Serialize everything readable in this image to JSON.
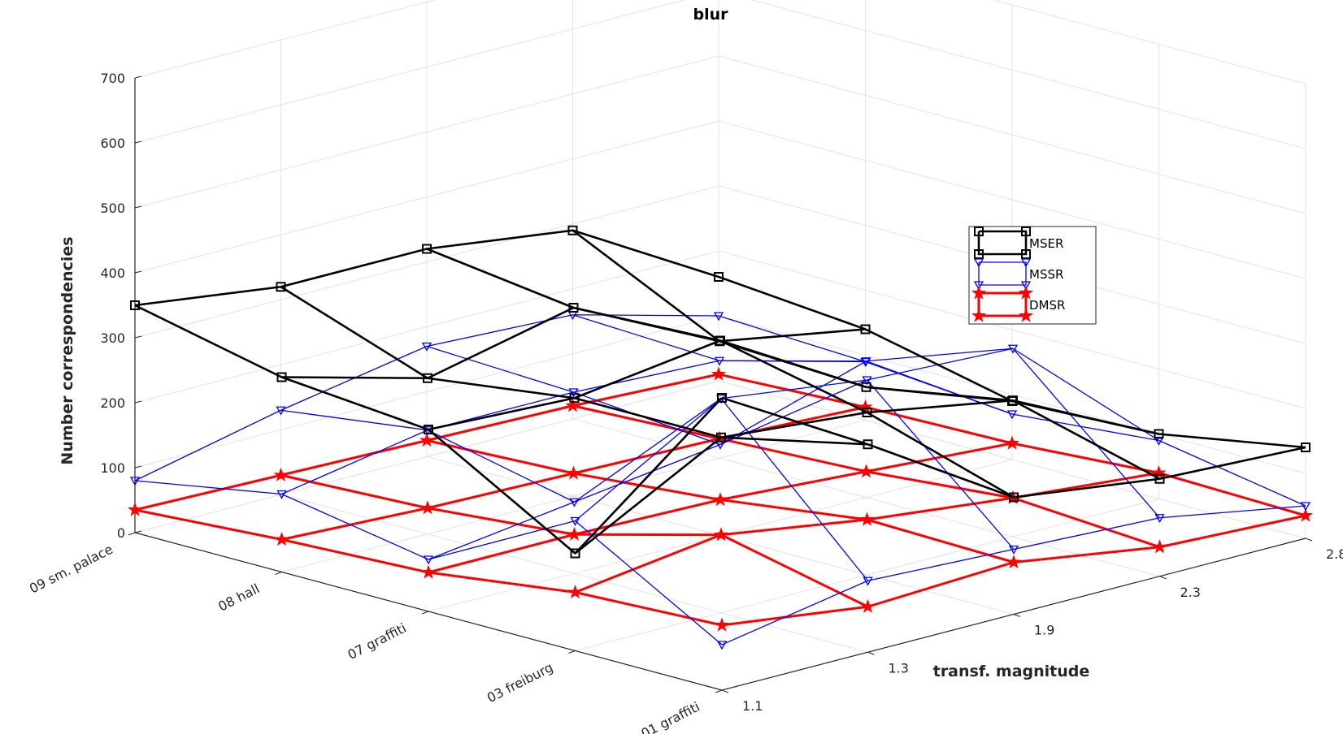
{
  "chart_data": {
    "type": "3d-line",
    "title": "blur",
    "xlabel": "",
    "ylabel": "transf. magnitude",
    "zlabel": "Number correspondencies",
    "x_categories": [
      "09 sm. palace",
      "08 hall",
      "07 graffiti",
      "03 freiburg",
      "01 graffiti"
    ],
    "y_ticks": [
      "1.1",
      "1.3",
      "1.9",
      "2.3",
      "2.8"
    ],
    "z_ticks": [
      "0",
      "100",
      "200",
      "300",
      "400",
      "500",
      "600",
      "700"
    ],
    "zlim": [
      0,
      700
    ],
    "grid": true,
    "legend_position": "upper-right",
    "series": [
      {
        "name": "MSER",
        "color": "#000000",
        "marker": "square",
        "values": [
          [
            350,
            320,
            320,
            290,
            160
          ],
          [
            300,
            240,
            290,
            180,
            140
          ],
          [
            280,
            270,
            300,
            170,
            90
          ],
          [
            150,
            270,
            250,
            210,
            100
          ],
          [
            450,
            320,
            180,
            150,
            140
          ]
        ]
      },
      {
        "name": "MSSR",
        "color": "#0000ff",
        "marker": "triangle-down",
        "values": [
          [
            80,
            130,
            170,
            160,
            100
          ],
          [
            120,
            160,
            160,
            150,
            90
          ],
          [
            80,
            110,
            140,
            210,
            70
          ],
          [
            200,
            330,
            300,
            290,
            90
          ],
          [
            70,
            110,
            100,
            90,
            50
          ]
        ]
      },
      {
        "name": "DMSR",
        "color": "#ff0000",
        "marker": "star",
        "values": [
          [
            35,
            30,
            25,
            20,
            10
          ],
          [
            50,
            40,
            35,
            30,
            20
          ],
          [
            60,
            60,
            55,
            40,
            25
          ],
          [
            90,
            120,
            85,
            60,
            40
          ],
          [
            100,
            70,
            80,
            45,
            35
          ]
        ]
      }
    ]
  }
}
